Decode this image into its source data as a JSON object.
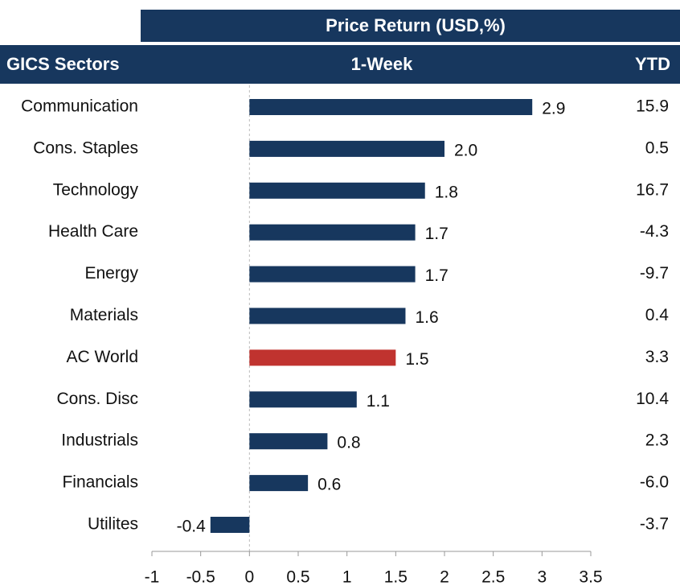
{
  "chart_data": {
    "type": "bar",
    "orientation": "horizontal",
    "title": "Price Return (USD,%)",
    "category_header": "GICS Sectors",
    "value_header": "1-Week",
    "ytd_header": "YTD",
    "categories": [
      "Communication",
      "Cons. Staples",
      "Technology",
      "Health Care",
      "Energy",
      "Materials",
      "AC World",
      "Cons. Disc",
      "Industrials",
      "Financials",
      "Utilites"
    ],
    "values": [
      2.9,
      2.0,
      1.8,
      1.7,
      1.7,
      1.6,
      1.5,
      1.1,
      0.8,
      0.6,
      -0.4
    ],
    "value_labels": [
      "2.9",
      "2.0",
      "1.8",
      "1.7",
      "1.7",
      "1.6",
      "1.5",
      "1.1",
      "0.8",
      "0.6",
      "-0.4"
    ],
    "colors": [
      "#17375e",
      "#17375e",
      "#17375e",
      "#17375e",
      "#17375e",
      "#17375e",
      "#c0332f",
      "#17375e",
      "#17375e",
      "#17375e",
      "#17375e"
    ],
    "ytd": [
      "15.9",
      "0.5",
      "16.7",
      "-4.3",
      "-9.7",
      "0.4",
      "3.3",
      "10.4",
      "2.3",
      "-6.0",
      "-3.7"
    ],
    "xlim": [
      -1,
      3.5
    ],
    "xticks": [
      -1,
      -0.5,
      0,
      0.5,
      1,
      1.5,
      2,
      2.5,
      3,
      3.5
    ]
  }
}
